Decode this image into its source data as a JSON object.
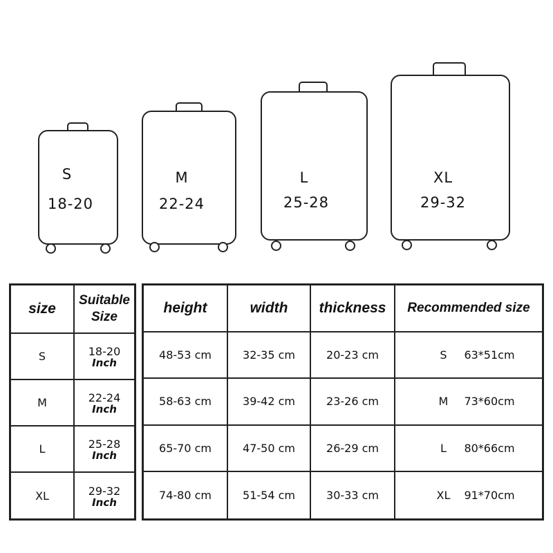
{
  "suitcases": [
    {
      "size": "S",
      "range": "18-20"
    },
    {
      "size": "M",
      "range": "22-24"
    },
    {
      "size": "L",
      "range": "25-28"
    },
    {
      "size": "XL",
      "range": "29-32"
    }
  ],
  "left_table": {
    "headers": [
      "size",
      "Suitable Size"
    ],
    "unit": "Inch",
    "rows": [
      {
        "size": "S",
        "suitable": "18-20"
      },
      {
        "size": "M",
        "suitable": "22-24"
      },
      {
        "size": "L",
        "suitable": "25-28"
      },
      {
        "size": "XL",
        "suitable": "29-32"
      }
    ]
  },
  "right_table": {
    "headers": [
      "height",
      "width",
      "thickness",
      "Recommended size"
    ],
    "rows": [
      {
        "height": "48-53 cm",
        "width": "32-35 cm",
        "thickness": "20-23 cm",
        "rec_size": "S",
        "rec_dim": "63*51cm"
      },
      {
        "height": "58-63 cm",
        "width": "39-42 cm",
        "thickness": "23-26 cm",
        "rec_size": "M",
        "rec_dim": "73*60cm"
      },
      {
        "height": "65-70 cm",
        "width": "47-50 cm",
        "thickness": "26-29 cm",
        "rec_size": "L",
        "rec_dim": "80*66cm"
      },
      {
        "height": "74-80 cm",
        "width": "51-54 cm",
        "thickness": "30-33 cm",
        "rec_size": "XL",
        "rec_dim": "91*70cm"
      }
    ]
  }
}
